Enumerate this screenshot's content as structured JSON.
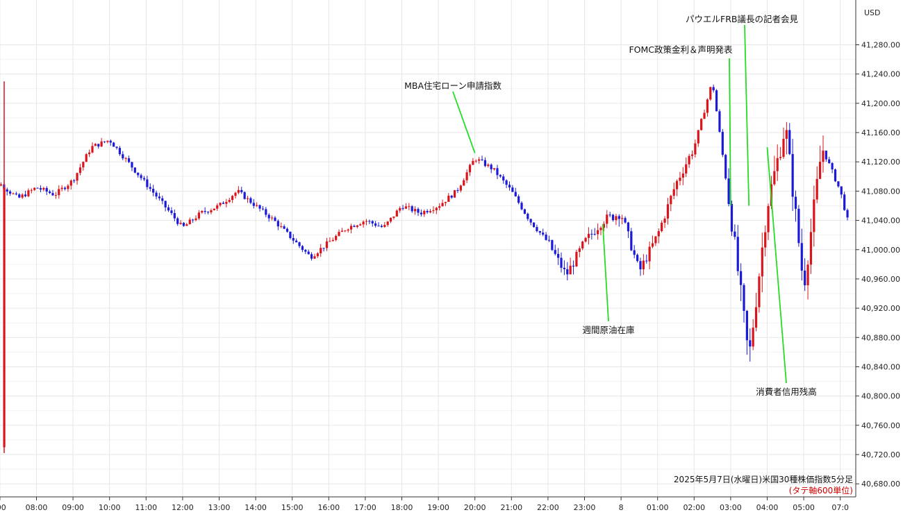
{
  "chart_data": {
    "type": "candlestick",
    "currency": "USD",
    "caption": "2025年5月7日(水曜日)米国30種株価指数5分足",
    "caption_sub": "(タテ軸600単位)",
    "y_axis": {
      "ylim": [
        40650,
        41340
      ],
      "ticks": [
        "41,280.00",
        "41,240.00",
        "41,200.00",
        "41,160.00",
        "41,120.00",
        "41,080.00",
        "41,040.00",
        "41,000.00",
        "40,960.00",
        "40,920.00",
        "40,880.00",
        "40,840.00",
        "40,800.00",
        "40,760.00",
        "40,720.00",
        "40,680.00"
      ],
      "tick_values": [
        41280,
        41240,
        41200,
        41160,
        41120,
        41080,
        41040,
        41000,
        40960,
        40920,
        40880,
        40840,
        40800,
        40760,
        40720,
        40680
      ]
    },
    "x_axis": {
      "ticks": [
        ":00",
        "08:00",
        "09:00",
        "10:00",
        "11:00",
        "12:00",
        "13:00",
        "14:00",
        "15:00",
        "16:00",
        "17:00",
        "18:00",
        "19:00",
        "20:00",
        "21:00",
        "22:00",
        "23:00",
        "8",
        "01:00",
        "02:00",
        "03:00",
        "04:00",
        "05:00",
        "07:0"
      ],
      "tick_hours": [
        7,
        8,
        9,
        10,
        11,
        12,
        13,
        14,
        15,
        16,
        17,
        18,
        19,
        20,
        21,
        22,
        23,
        24,
        25,
        26,
        27,
        28,
        29,
        30
      ]
    },
    "colors": {
      "up": "#d9141b",
      "down": "#1a1ad8",
      "annotation_line": "#22dd22",
      "caption_sub": "#d40000"
    },
    "annotations": [
      {
        "text": "MBA住宅ローン申請指数",
        "hour": 20.0,
        "price": 41132
      },
      {
        "text": "週間原油在庫",
        "hour": 23.5,
        "price": 41035
      },
      {
        "text": "FOMC政策金利＆声明発表",
        "hour": 27.0,
        "price": 41060
      },
      {
        "text": "パウエルFRB議長の記者会見",
        "hour": 27.5,
        "price": 41060
      },
      {
        "text": "消費者信用残高",
        "hour": 28.0,
        "price": 41140
      }
    ],
    "series": [
      {
        "name": "",
        "hourly_close": [
          [
            6.5,
            41085
          ],
          [
            7.0,
            41090
          ],
          [
            7.5,
            41070
          ],
          [
            8.0,
            41085
          ],
          [
            8.5,
            41075
          ],
          [
            9.0,
            41095
          ],
          [
            9.5,
            41140
          ],
          [
            10.0,
            41150
          ],
          [
            10.5,
            41120
          ],
          [
            11.0,
            41090
          ],
          [
            11.5,
            41060
          ],
          [
            12.0,
            41030
          ],
          [
            12.5,
            41050
          ],
          [
            13.0,
            41060
          ],
          [
            13.5,
            41080
          ],
          [
            14.0,
            41060
          ],
          [
            14.5,
            41040
          ],
          [
            15.0,
            41015
          ],
          [
            15.5,
            40990
          ],
          [
            16.0,
            41010
          ],
          [
            16.5,
            41030
          ],
          [
            17.0,
            41040
          ],
          [
            17.5,
            41030
          ],
          [
            18.0,
            41060
          ],
          [
            18.5,
            41050
          ],
          [
            19.0,
            41060
          ],
          [
            19.5,
            41080
          ],
          [
            20.0,
            41125
          ],
          [
            20.5,
            41110
          ],
          [
            21.0,
            41080
          ],
          [
            21.5,
            41040
          ],
          [
            22.0,
            41010
          ],
          [
            22.5,
            40965
          ],
          [
            23.0,
            41010
          ],
          [
            23.5,
            41040
          ],
          [
            24.0,
            41050
          ],
          [
            24.5,
            40970
          ],
          [
            25.0,
            41020
          ],
          [
            25.5,
            41090
          ],
          [
            26.0,
            41140
          ],
          [
            26.5,
            41230
          ],
          [
            27.0,
            41050
          ],
          [
            27.5,
            40850
          ],
          [
            28.0,
            41060
          ],
          [
            28.5,
            41170
          ],
          [
            29.0,
            40950
          ],
          [
            29.5,
            41140
          ],
          [
            30.0,
            41080
          ],
          [
            30.2,
            41040
          ]
        ]
      }
    ]
  }
}
